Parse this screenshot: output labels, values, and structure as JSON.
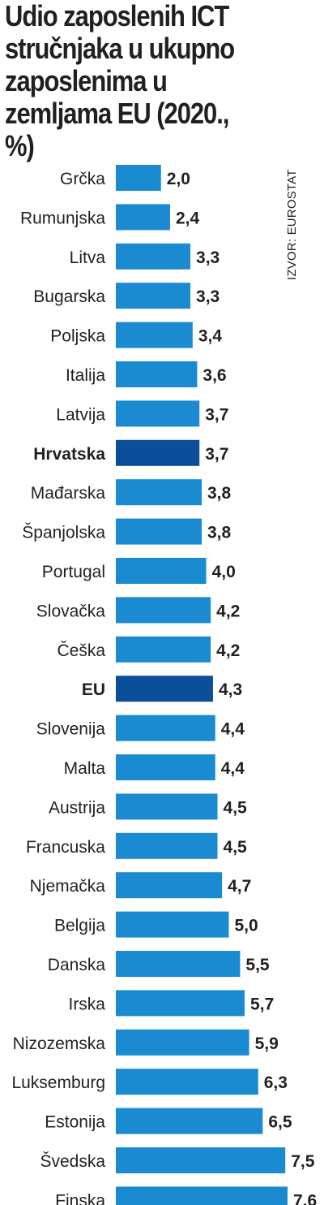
{
  "title": "Udio zaposlenih ICT stručnjaka u ukupno zaposlenima u zemljama EU (2020., %)",
  "source": "IZVOR: EUROSTAT",
  "colors": {
    "bar": "#1a8ad1",
    "highlight": "#0b4f9a",
    "text": "#231f20"
  },
  "chart_data": {
    "type": "bar",
    "orientation": "horizontal",
    "title": "Udio zaposlenih ICT stručnjaka u ukupno zaposlenima u zemljama EU (2020., %)",
    "categories": [
      "Grčka",
      "Rumunjska",
      "Litva",
      "Bugarska",
      "Poljska",
      "Italija",
      "Latvija",
      "Hrvatska",
      "Mađarska",
      "Španjolska",
      "Portugal",
      "Slovačka",
      "Češka",
      "EU",
      "Slovenija",
      "Malta",
      "Austrija",
      "Francuska",
      "Njemačka",
      "Belgija",
      "Danska",
      "Irska",
      "Nizozemska",
      "Luksemburg",
      "Estonija",
      "Švedska",
      "Finska"
    ],
    "values": [
      2.0,
      2.4,
      3.3,
      3.3,
      3.4,
      3.6,
      3.7,
      3.7,
      3.8,
      3.8,
      4.0,
      4.2,
      4.2,
      4.3,
      4.4,
      4.4,
      4.5,
      4.5,
      4.7,
      5.0,
      5.5,
      5.7,
      5.9,
      6.3,
      6.5,
      7.5,
      7.6
    ],
    "value_labels": [
      "2,0",
      "2,4",
      "3,3",
      "3,3",
      "3,4",
      "3,6",
      "3,7",
      "3,7",
      "3,8",
      "3,8",
      "4,0",
      "4,2",
      "4,2",
      "4,3",
      "4,4",
      "4,4",
      "4,5",
      "4,5",
      "4,7",
      "5,0",
      "5,5",
      "5,7",
      "5,9",
      "6,3",
      "6,5",
      "7,5",
      "7,6"
    ],
    "highlighted": [
      "Hrvatska",
      "EU"
    ],
    "xlim": [
      0,
      7.6
    ],
    "grid": false,
    "legend": "none"
  }
}
